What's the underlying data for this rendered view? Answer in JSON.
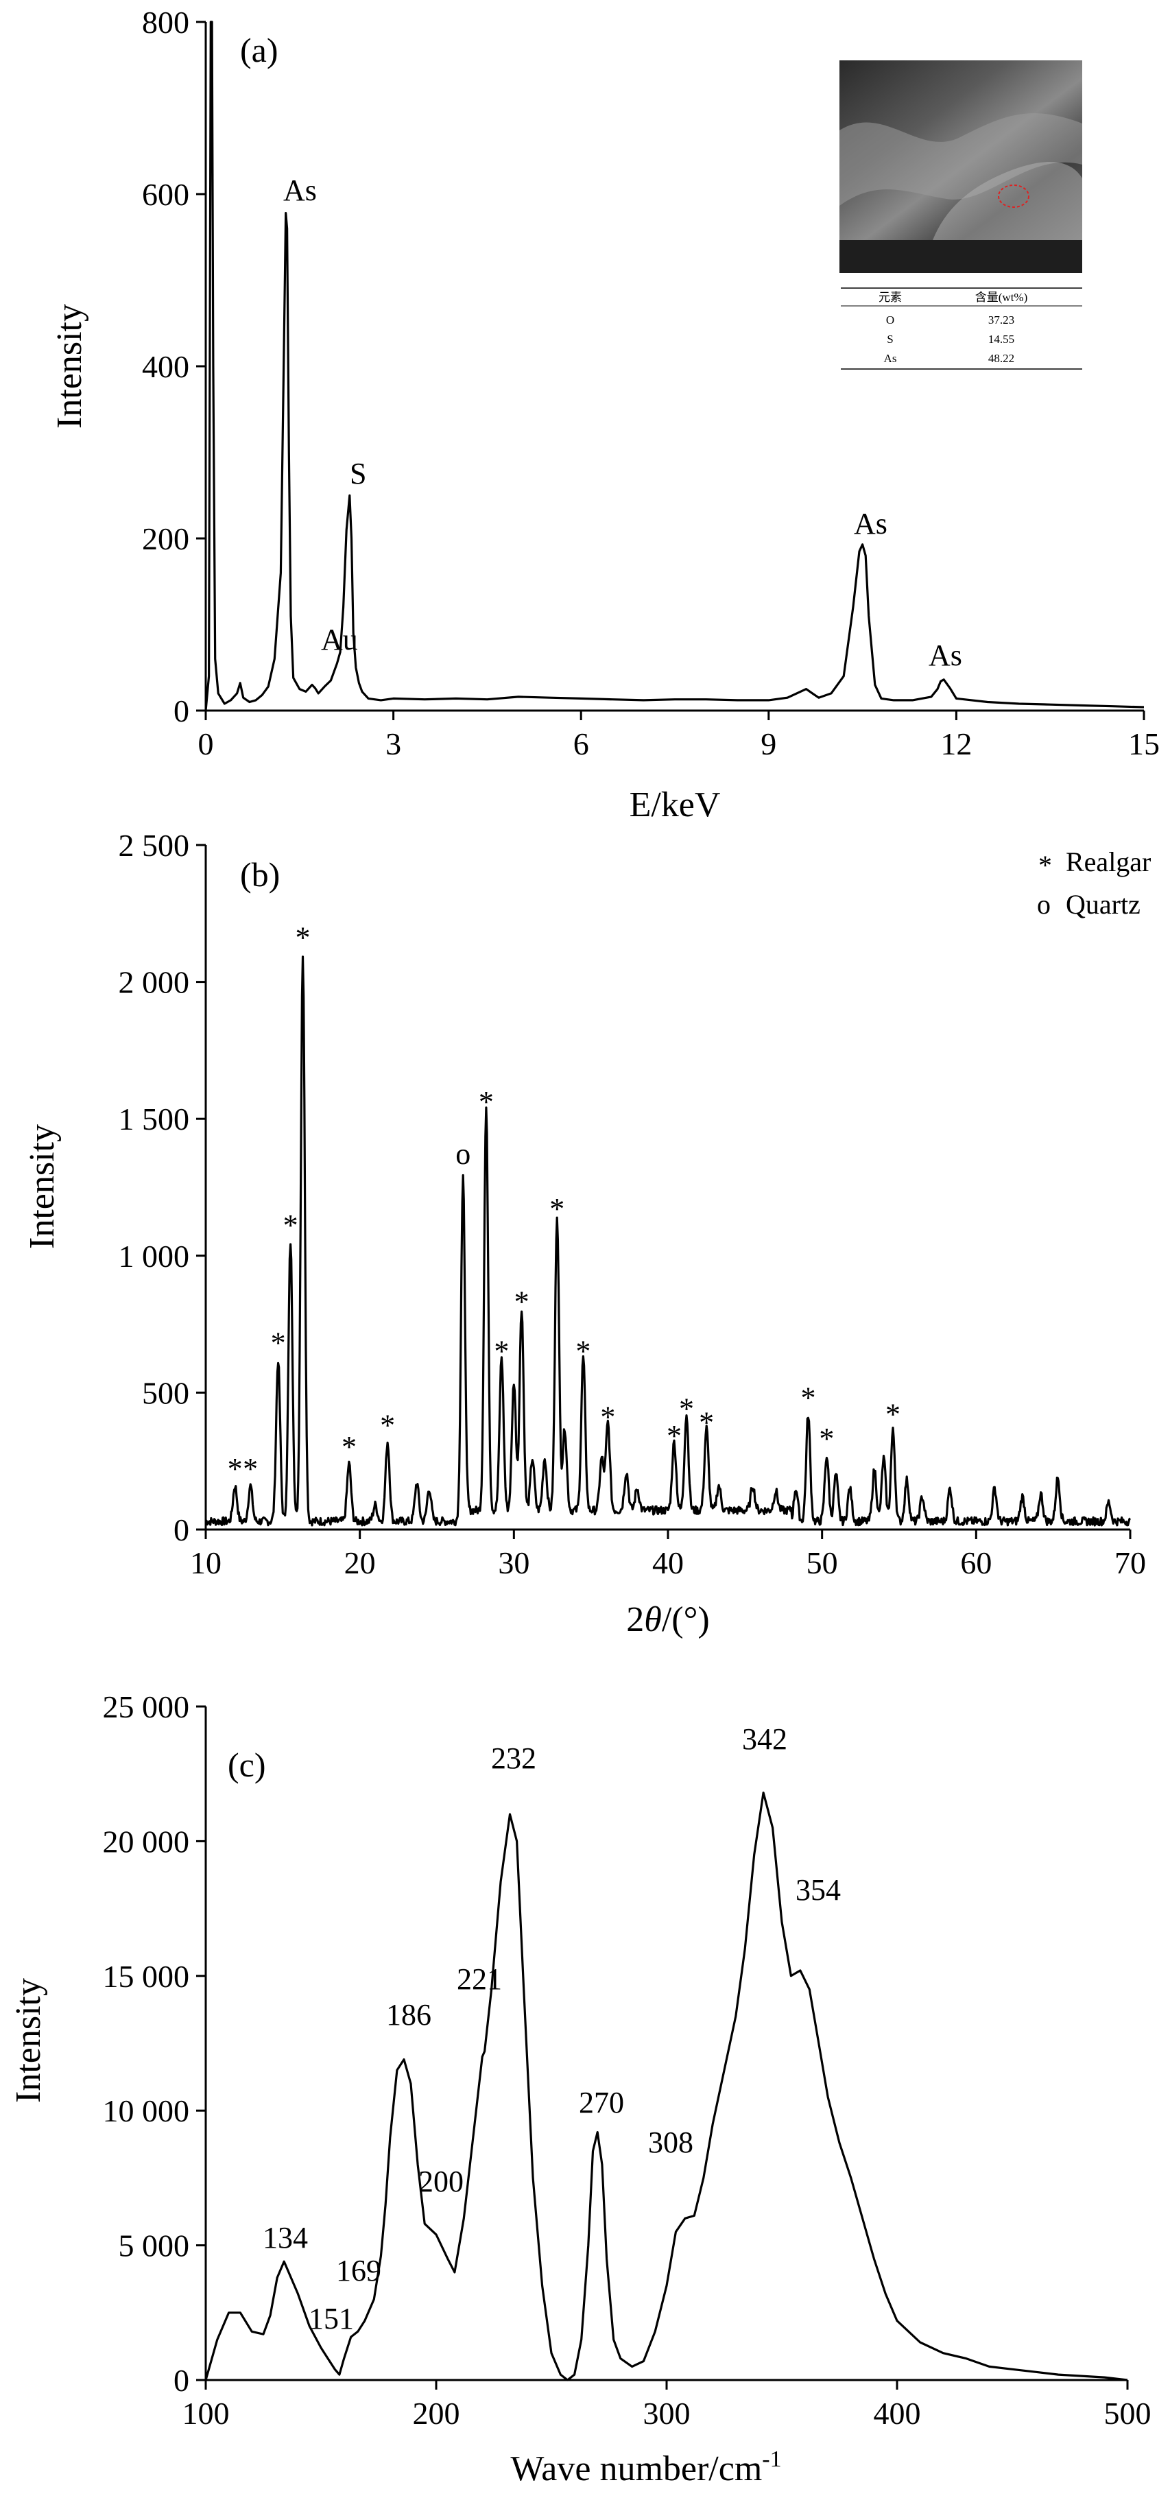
{
  "chart_data": [
    {
      "type": "line",
      "panel_label": "(a)",
      "xlabel": "E/keV",
      "ylabel": "Intensity",
      "xlim": [
        0,
        15
      ],
      "ylim": [
        0,
        800
      ],
      "xticks": [
        "0",
        "3",
        "6",
        "9",
        "12",
        "15"
      ],
      "yticks": [
        "0",
        "200",
        "400",
        "600",
        "800"
      ],
      "series": [
        {
          "x": [
            0,
            0.05,
            0.08,
            0.1,
            0.12,
            0.15,
            0.2,
            0.3,
            0.4,
            0.5,
            0.55,
            0.6,
            0.7,
            0.8,
            0.9,
            1.0,
            1.1,
            1.2,
            1.25,
            1.28,
            1.3,
            1.33,
            1.36,
            1.4,
            1.5,
            1.6,
            1.7,
            1.75,
            1.8,
            1.9,
            2.0,
            2.1,
            2.15,
            2.2,
            2.25,
            2.3,
            2.33,
            2.36,
            2.4,
            2.45,
            2.5,
            2.6,
            2.8,
            3.0,
            3.5,
            4.0,
            4.5,
            5.0,
            5.5,
            6.0,
            6.5,
            7.0,
            7.5,
            8.0,
            8.5,
            9.0,
            9.3,
            9.6,
            9.7,
            9.8,
            10.0,
            10.2,
            10.35,
            10.45,
            10.5,
            10.55,
            10.6,
            10.7,
            10.8,
            11.0,
            11.3,
            11.6,
            11.7,
            11.75,
            11.8,
            11.9,
            12.0,
            12.5,
            13.0,
            13.5,
            14.0,
            14.5,
            15.0
          ],
          "y": [
            0,
            40,
            800,
            800,
            400,
            60,
            20,
            8,
            12,
            20,
            32,
            15,
            10,
            12,
            18,
            28,
            60,
            160,
            420,
            578,
            560,
            300,
            110,
            38,
            25,
            22,
            30,
            26,
            20,
            28,
            35,
            55,
            68,
            120,
            210,
            250,
            200,
            90,
            50,
            32,
            22,
            14,
            12,
            14,
            13,
            14,
            13,
            16,
            15,
            14,
            13,
            12,
            13,
            13,
            12,
            12,
            15,
            25,
            20,
            15,
            20,
            40,
            120,
            185,
            193,
            180,
            110,
            30,
            14,
            12,
            12,
            16,
            25,
            34,
            36,
            26,
            14,
            10,
            8,
            7,
            6,
            5,
            4
          ]
        }
      ],
      "annotations": [
        "As",
        "S",
        "Au",
        "As",
        "As"
      ],
      "inset": {
        "header": [
          "元素",
          "含量(wt%)"
        ],
        "rows": [
          [
            "O",
            "37.23"
          ],
          [
            "S",
            "14.55"
          ],
          [
            "As",
            "48.22"
          ]
        ]
      }
    },
    {
      "type": "line",
      "panel_label": "(b)",
      "xlabel": "2θ/(°)",
      "xlabel_prefix": "2",
      "xlabel_theta": "θ",
      "xlabel_suffix": "/(°)",
      "ylabel": "Intensity",
      "xlim": [
        10,
        70
      ],
      "ylim": [
        0,
        2500
      ],
      "xticks": [
        "10",
        "20",
        "30",
        "40",
        "50",
        "60",
        "70"
      ],
      "yticks": [
        "0",
        "500",
        "1 000",
        "1 500",
        "2 000",
        "2 500"
      ],
      "legend": [
        {
          "marker": "*",
          "label": "Realgar"
        },
        {
          "marker": "o",
          "label": "Quartz"
        }
      ],
      "peaks": [
        {
          "x": 11.9,
          "y": 160,
          "label": "*"
        },
        {
          "x": 12.9,
          "y": 160,
          "label": "*"
        },
        {
          "x": 14.7,
          "y": 620,
          "label": "*"
        },
        {
          "x": 15.5,
          "y": 1050,
          "label": "*"
        },
        {
          "x": 16.3,
          "y": 2100,
          "label": "*"
        },
        {
          "x": 19.3,
          "y": 240,
          "label": "*"
        },
        {
          "x": 21.8,
          "y": 320,
          "label": "*"
        },
        {
          "x": 26.7,
          "y": 1280,
          "label": "o"
        },
        {
          "x": 28.2,
          "y": 1500,
          "label": "*"
        },
        {
          "x": 29.2,
          "y": 590,
          "label": "*"
        },
        {
          "x": 30.5,
          "y": 770,
          "label": "*"
        },
        {
          "x": 32.8,
          "y": 1110,
          "label": "*"
        },
        {
          "x": 34.5,
          "y": 590,
          "label": "*"
        },
        {
          "x": 36.1,
          "y": 350,
          "label": "*"
        },
        {
          "x": 40.4,
          "y": 280,
          "label": "*"
        },
        {
          "x": 41.2,
          "y": 380,
          "label": "*"
        },
        {
          "x": 42.5,
          "y": 330,
          "label": "*"
        },
        {
          "x": 49.1,
          "y": 420,
          "label": "*"
        },
        {
          "x": 50.3,
          "y": 270,
          "label": "*"
        },
        {
          "x": 54.6,
          "y": 360,
          "label": "*"
        },
        {
          "x": 21.0,
          "y": 90,
          "label": ""
        },
        {
          "x": 23.7,
          "y": 170,
          "label": ""
        },
        {
          "x": 24.5,
          "y": 150,
          "label": ""
        },
        {
          "x": 30.0,
          "y": 500,
          "label": ""
        },
        {
          "x": 31.2,
          "y": 220,
          "label": ""
        },
        {
          "x": 32.0,
          "y": 220,
          "label": ""
        },
        {
          "x": 33.3,
          "y": 330,
          "label": ""
        },
        {
          "x": 35.7,
          "y": 220,
          "label": ""
        },
        {
          "x": 37.3,
          "y": 170,
          "label": ""
        },
        {
          "x": 38.0,
          "y": 110,
          "label": ""
        },
        {
          "x": 43.3,
          "y": 120,
          "label": ""
        },
        {
          "x": 45.5,
          "y": 120,
          "label": ""
        },
        {
          "x": 47.0,
          "y": 100,
          "label": ""
        },
        {
          "x": 48.3,
          "y": 150,
          "label": ""
        },
        {
          "x": 50.9,
          "y": 200,
          "label": ""
        },
        {
          "x": 51.8,
          "y": 150,
          "label": ""
        },
        {
          "x": 53.4,
          "y": 220,
          "label": ""
        },
        {
          "x": 54.0,
          "y": 260,
          "label": ""
        },
        {
          "x": 55.5,
          "y": 180,
          "label": ""
        },
        {
          "x": 56.5,
          "y": 120,
          "label": ""
        },
        {
          "x": 58.3,
          "y": 150,
          "label": ""
        },
        {
          "x": 61.2,
          "y": 150,
          "label": ""
        },
        {
          "x": 63.0,
          "y": 120,
          "label": ""
        },
        {
          "x": 64.2,
          "y": 130,
          "label": ""
        },
        {
          "x": 65.3,
          "y": 190,
          "label": ""
        },
        {
          "x": 68.6,
          "y": 100,
          "label": ""
        }
      ]
    },
    {
      "type": "line",
      "panel_label": "(c)",
      "xlabel": "Wave number/cm-1",
      "xlabel_main": "Wave number/cm",
      "xlabel_sup": "-1",
      "ylabel": "Intensity",
      "xlim": [
        100,
        500
      ],
      "ylim": [
        0,
        25000
      ],
      "xticks": [
        "100",
        "200",
        "300",
        "400",
        "500"
      ],
      "yticks": [
        "0",
        "5 000",
        "10 000",
        "15 000",
        "20 000",
        "25 000"
      ],
      "series": [
        {
          "x": [
            100,
            105,
            110,
            115,
            120,
            125,
            128,
            131,
            134,
            137,
            140,
            145,
            150,
            153,
            156,
            158,
            160,
            163,
            166,
            169,
            173,
            176,
            178,
            180,
            183,
            186,
            189,
            192,
            195,
            200,
            205,
            208,
            212,
            216,
            220,
            221,
            224,
            228,
            232,
            235,
            238,
            242,
            246,
            250,
            254,
            257,
            260,
            263,
            266,
            268,
            270,
            272,
            274,
            277,
            280,
            285,
            290,
            295,
            300,
            304,
            308,
            312,
            316,
            320,
            325,
            330,
            334,
            338,
            342,
            346,
            350,
            354,
            358,
            362,
            366,
            370,
            375,
            380,
            385,
            390,
            395,
            400,
            410,
            420,
            430,
            440,
            450,
            460,
            470,
            480,
            490,
            500
          ],
          "y": [
            0,
            1500,
            2500,
            2500,
            1800,
            1700,
            2400,
            3800,
            4400,
            3800,
            3200,
            2000,
            1200,
            800,
            400,
            200,
            800,
            1600,
            1800,
            2200,
            3000,
            4600,
            6500,
            9000,
            11500,
            11900,
            11000,
            8000,
            5800,
            5400,
            4500,
            4000,
            6000,
            9000,
            12000,
            12200,
            14500,
            18500,
            21000,
            20000,
            14500,
            7500,
            3500,
            1000,
            200,
            0,
            200,
            1500,
            5000,
            8500,
            9200,
            8000,
            4500,
            1500,
            800,
            500,
            700,
            1800,
            3500,
            5500,
            6000,
            6100,
            7500,
            9500,
            11500,
            13500,
            16000,
            19500,
            21800,
            20500,
            17000,
            15000,
            15200,
            14500,
            12500,
            10500,
            8800,
            7500,
            6000,
            4500,
            3200,
            2200,
            1400,
            1000,
            800,
            500,
            400,
            300,
            200,
            150,
            100,
            0
          ]
        }
      ],
      "annotations": [
        "134",
        "151",
        "169",
        "186",
        "200",
        "221",
        "232",
        "270",
        "308",
        "342",
        "354"
      ]
    }
  ]
}
